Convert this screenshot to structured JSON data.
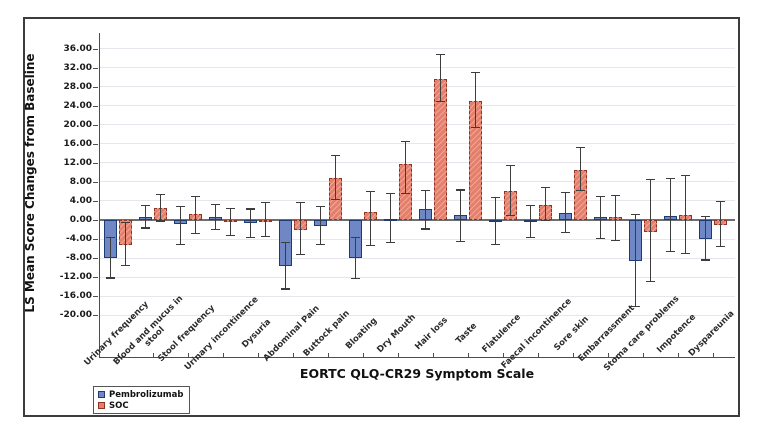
{
  "figure": {
    "y_axis_title": "LS Mean Score Changes from Baseline",
    "x_axis_title": "EORTC QLQ-CR29 Symptom Scale"
  },
  "legend": {
    "position": "bottom-left",
    "items": [
      {
        "label": "Pembrolizumab",
        "color": "#7087C5"
      },
      {
        "label": "SOC",
        "color": "#E57F6C"
      }
    ]
  },
  "colors": {
    "pembrolizumab_fill": "#7087C5",
    "pembrolizumab_border": "#1F3B73",
    "soc_fill": "#E57F6C",
    "soc_border": "#8C3428",
    "error_bar": "#3d3d3d",
    "gridline": "#e6e6ec",
    "axis": "#4d4d4d"
  },
  "chart_data": {
    "type": "bar",
    "title": "",
    "xlabel": "EORTC QLQ-CR29 Symptom Scale",
    "ylabel": "LS Mean Score Changes from Baseline",
    "ylim": [
      -29,
      39.3
    ],
    "yticks": [
      36,
      32,
      28,
      24,
      20,
      16,
      12,
      8,
      4,
      0,
      -4,
      -8,
      -12,
      -16,
      -20
    ],
    "grid": true,
    "error_bars": true,
    "legend_position": "bottom-left",
    "categories": [
      "Urinary frequency",
      "Blood and mucus in\nstool",
      "Stool frequency",
      "Urinary incontinence",
      "Dysuria",
      "Abdominal Pain",
      "Buttock pain",
      "Bloating",
      "Dry Mouth",
      "Hair loss",
      "Taste",
      "Flatulence",
      "Faecal incontinence",
      "Sore skin",
      "Embarrassment",
      "Stoma care problems",
      "Impotence",
      "Dyspareunia"
    ],
    "series": [
      {
        "name": "Pembrolizumab",
        "color": "#7087C5",
        "values": [
          -8.0,
          0.6,
          -0.9,
          0.7,
          -0.7,
          -9.6,
          -1.2,
          -8.0,
          0.3,
          2.3,
          1.1,
          -0.4,
          -0.3,
          1.5,
          0.7,
          -8.7,
          0.9,
          -4.0
        ],
        "ci_low": [
          -12.2,
          -1.7,
          -5.1,
          -2.0,
          -3.7,
          -14.5,
          -5.2,
          -12.3,
          -4.8,
          -1.9,
          -4.5,
          -5.1,
          -3.6,
          -2.7,
          -3.9,
          -18.2,
          -6.7,
          -8.4
        ],
        "ci_high": [
          -3.7,
          3.0,
          2.8,
          3.3,
          2.3,
          -4.7,
          2.8,
          -3.6,
          5.5,
          6.2,
          6.3,
          4.7,
          3.0,
          5.7,
          5.0,
          1.2,
          8.8,
          0.8
        ]
      },
      {
        "name": "SOC",
        "color": "#E57F6C",
        "values": [
          -5.2,
          2.5,
          1.2,
          -0.5,
          -0.3,
          -2.1,
          8.9,
          1.6,
          11.7,
          29.6,
          25.0,
          6.0,
          3.2,
          10.5,
          0.6,
          -2.5,
          1.1,
          -1.1
        ],
        "ci_low": [
          -9.6,
          -0.2,
          -2.8,
          -3.3,
          -3.5,
          -7.3,
          4.3,
          -5.4,
          5.6,
          24.9,
          19.5,
          0.9,
          -0.1,
          6.2,
          -4.3,
          -12.9,
          -7.1,
          -5.6
        ],
        "ci_high": [
          -0.5,
          5.3,
          4.9,
          2.5,
          3.7,
          3.7,
          13.6,
          6.0,
          16.5,
          34.7,
          31.0,
          11.4,
          6.9,
          15.3,
          5.2,
          8.5,
          9.4,
          3.8
        ]
      }
    ]
  }
}
